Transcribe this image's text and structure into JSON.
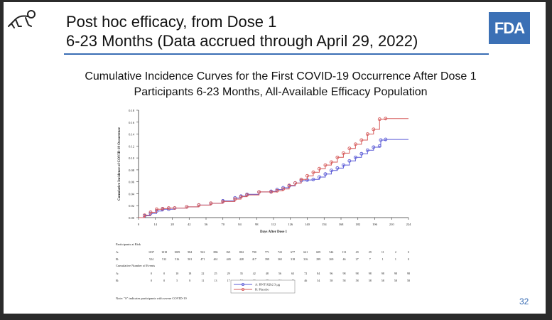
{
  "slide": {
    "title_line1": "Post hoc efficacy, from Dose 1",
    "title_line2": "6-23 Months (Data accrued through April 29, 2022)",
    "logo_text": "FDA",
    "subtitle_line1": "Cumulative Incidence Curves for the First COVID-19 Occurrence After Dose 1",
    "subtitle_line2": "Participants 6-23 Months, All-Available Efficacy Population",
    "page_number": "32",
    "accent_color": "#3b70b5"
  },
  "chart_data": {
    "type": "line",
    "title": "",
    "xlabel": "Days After Dose 1",
    "ylabel": "Cumulative Incidence of COVID-19 Occurrence",
    "xlim": [
      0,
      224
    ],
    "ylim": [
      0,
      0.18
    ],
    "x_ticks": [
      0,
      14,
      28,
      42,
      56,
      70,
      84,
      98,
      112,
      126,
      140,
      154,
      168,
      182,
      196,
      210,
      224
    ],
    "y_ticks": [
      "0.00",
      "0.02",
      "0.04",
      "0.06",
      "0.08",
      "0.10",
      "0.12",
      "0.14",
      "0.16",
      "0.18"
    ],
    "series": [
      {
        "name": "A: BNT162b2 3 μg",
        "color": "#5a5ad6",
        "x": [
          0,
          5,
          10,
          15,
          20,
          25,
          30,
          40,
          50,
          60,
          70,
          80,
          85,
          90,
          100,
          110,
          115,
          120,
          125,
          130,
          135,
          140,
          145,
          150,
          155,
          160,
          165,
          170,
          175,
          180,
          185,
          190,
          195,
          200,
          201,
          205,
          224
        ],
        "y": [
          0.0,
          0.003,
          0.007,
          0.011,
          0.014,
          0.014,
          0.016,
          0.018,
          0.021,
          0.024,
          0.028,
          0.033,
          0.036,
          0.039,
          0.043,
          0.044,
          0.047,
          0.05,
          0.053,
          0.058,
          0.062,
          0.063,
          0.064,
          0.068,
          0.073,
          0.079,
          0.083,
          0.088,
          0.095,
          0.101,
          0.107,
          0.113,
          0.118,
          0.12,
          0.13,
          0.131,
          0.131
        ]
      },
      {
        "name": "B: Placebo",
        "color": "#d65a5a",
        "x": [
          0,
          5,
          10,
          15,
          20,
          25,
          30,
          40,
          50,
          60,
          70,
          80,
          85,
          90,
          100,
          110,
          115,
          120,
          125,
          130,
          135,
          140,
          145,
          150,
          155,
          160,
          165,
          170,
          175,
          180,
          185,
          190,
          195,
          200,
          205,
          224
        ],
        "y": [
          0.0,
          0.004,
          0.009,
          0.014,
          0.015,
          0.016,
          0.016,
          0.018,
          0.021,
          0.024,
          0.027,
          0.031,
          0.035,
          0.038,
          0.043,
          0.043,
          0.045,
          0.048,
          0.054,
          0.058,
          0.064,
          0.07,
          0.076,
          0.082,
          0.088,
          0.093,
          0.101,
          0.108,
          0.116,
          0.123,
          0.13,
          0.14,
          0.148,
          0.165,
          0.166,
          0.166
        ]
      }
    ],
    "legend_position": "bottom-right",
    "risk_table": {
      "header": "Participants at Risk",
      "rows": [
        {
          "label": "A:",
          "values": [
            "1037",
            "1018",
            "1009",
            "984",
            "922",
            "886",
            "821",
            "804",
            "700",
            "771",
            "722",
            "677",
            "641",
            "609",
            "544",
            "131",
            "49",
            "29",
            "11",
            "2",
            "0"
          ]
        },
        {
          "label": "B:",
          "values": [
            "524",
            "512",
            "516",
            "501",
            "471",
            "461",
            "449",
            "428",
            "417",
            "399",
            "365",
            "318",
            "316",
            "299",
            "269",
            "46",
            "27",
            "7",
            "1",
            "1",
            "0"
          ]
        }
      ]
    },
    "events_table": {
      "header": "Cumulative Number of Events",
      "rows": [
        {
          "label": "A:",
          "values": [
            "0",
            "0",
            "10",
            "18",
            "22",
            "25",
            "29",
            "35",
            "42",
            "48",
            "56",
            "63",
            "72",
            "84",
            "96",
            "98",
            "98",
            "98",
            "98",
            "98",
            "98"
          ]
        },
        {
          "label": "B:",
          "values": [
            "0",
            "0",
            "5",
            "8",
            "11",
            "13",
            "17",
            "19",
            "23",
            "28",
            "34",
            "40",
            "46",
            "54",
            "58",
            "58",
            "58",
            "58",
            "58",
            "58",
            "58"
          ]
        }
      ]
    },
    "footnote": "Note: \"S\" indicates participants with severe COVID-19"
  }
}
